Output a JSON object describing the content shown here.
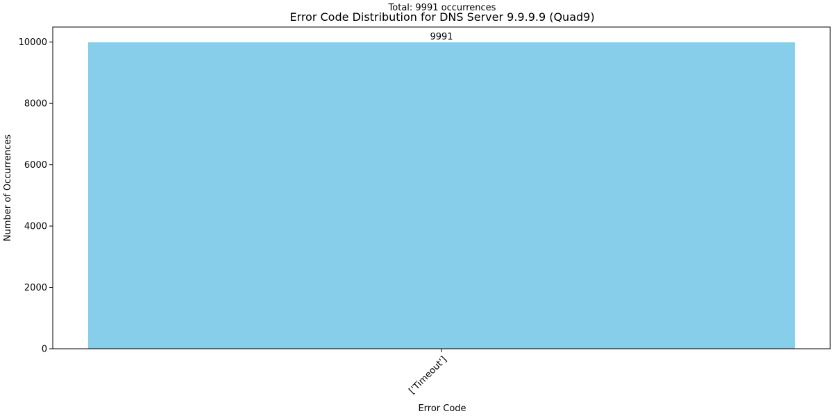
{
  "chart_data": {
    "type": "bar",
    "title": "Error Code Distribution for DNS Server 9.9.9.9 (Quad9)",
    "subtitle": "Total: 9991 occurrences",
    "xlabel": "Error Code",
    "ylabel": "Number of Occurrences",
    "categories": [
      "['Timeout']"
    ],
    "values": [
      9991
    ],
    "data_labels": [
      "9991"
    ],
    "ylim": [
      0,
      10490.55
    ],
    "yticks": [
      0,
      2000,
      4000,
      6000,
      8000,
      10000
    ],
    "ytick_labels": [
      "0",
      "2000",
      "4000",
      "6000",
      "8000",
      "10000"
    ],
    "grid": false,
    "legend": "none",
    "bar_color": "#87CEEB",
    "edge_color": "#000000"
  }
}
